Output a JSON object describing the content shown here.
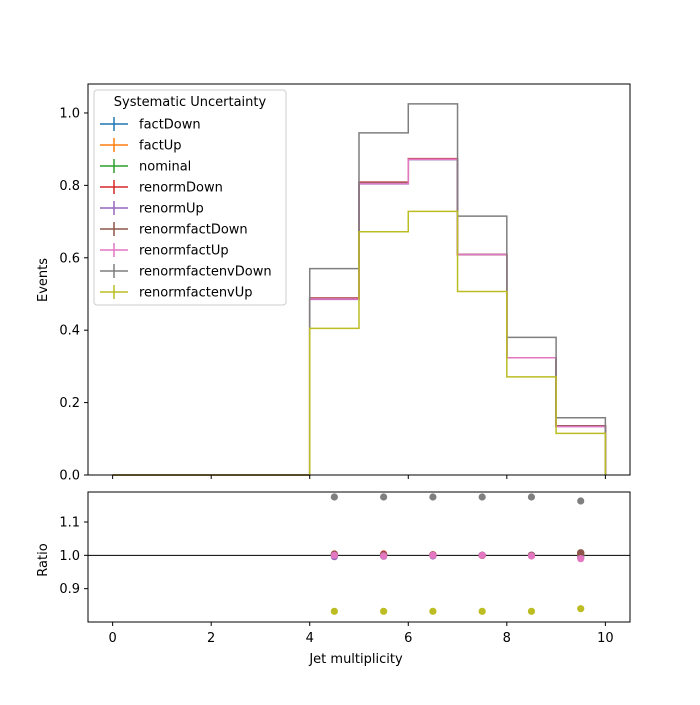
{
  "chart_data": [
    {
      "type": "step",
      "ylabel": "Events",
      "xlim": [
        -0.5,
        10.5
      ],
      "ylim": [
        0,
        1.08
      ],
      "yticks": [
        "0.0",
        "0.2",
        "0.4",
        "0.6",
        "0.8",
        "1.0"
      ],
      "bin_edges": [
        0,
        1,
        2,
        3,
        4,
        5,
        6,
        7,
        8,
        9,
        10
      ],
      "legend": {
        "title": "Systematic Uncertainty",
        "placement": "upper-left"
      },
      "series": [
        {
          "name": "factDown",
          "color": "#1f77b4",
          "values": [
            0,
            0,
            0,
            0,
            0.487,
            0.806,
            0.872,
            0.609,
            0.324,
            0.135
          ]
        },
        {
          "name": "factUp",
          "color": "#ff7f0e",
          "values": [
            0,
            0,
            0,
            0,
            0.487,
            0.806,
            0.872,
            0.609,
            0.324,
            0.135
          ]
        },
        {
          "name": "nominal",
          "color": "#2ca02c",
          "values": [
            0,
            0,
            0,
            0,
            0.487,
            0.806,
            0.872,
            0.609,
            0.324,
            0.135
          ]
        },
        {
          "name": "renormDown",
          "color": "#d62728",
          "values": [
            0,
            0,
            0,
            0,
            0.489,
            0.809,
            0.874,
            0.609,
            0.324,
            0.136
          ]
        },
        {
          "name": "renormUp",
          "color": "#9467bd",
          "values": [
            0,
            0,
            0,
            0,
            0.485,
            0.804,
            0.871,
            0.609,
            0.324,
            0.134
          ]
        },
        {
          "name": "renormfactDown",
          "color": "#8c564b",
          "values": [
            0,
            0,
            0,
            0,
            0.488,
            0.808,
            0.873,
            0.609,
            0.324,
            0.136
          ]
        },
        {
          "name": "renormfactUp",
          "color": "#e377c2",
          "values": [
            0,
            0,
            0,
            0,
            0.486,
            0.805,
            0.872,
            0.609,
            0.324,
            0.134
          ]
        },
        {
          "name": "renormfactenvDown",
          "color": "#7f7f7f",
          "values": [
            0,
            0,
            0,
            0,
            0.57,
            0.945,
            1.025,
            0.715,
            0.38,
            0.158
          ]
        },
        {
          "name": "renormfactenvUp",
          "color": "#bcbd22",
          "values": [
            0,
            0,
            0,
            0,
            0.405,
            0.672,
            0.728,
            0.507,
            0.271,
            0.115
          ]
        }
      ]
    },
    {
      "type": "scatter",
      "xlabel": "Jet multiplicity",
      "ylabel": "Ratio",
      "xlim": [
        -0.5,
        10.5
      ],
      "ylim": [
        0.8,
        1.19
      ],
      "xticks": [
        "0",
        "2",
        "4",
        "6",
        "8",
        "10"
      ],
      "yticks": [
        "0.9",
        "1.0",
        "1.1"
      ],
      "reference_line": 1.0,
      "x": [
        4.5,
        5.5,
        6.5,
        7.5,
        8.5,
        9.5
      ],
      "series": [
        {
          "name": "factDown",
          "color": "#1f77b4",
          "values": [
            1.0,
            1.0,
            1.0,
            1.0,
            1.0,
            1.0
          ]
        },
        {
          "name": "factUp",
          "color": "#ff7f0e",
          "values": [
            1.0,
            1.0,
            1.0,
            1.0,
            1.0,
            1.0
          ]
        },
        {
          "name": "nominal",
          "color": "#2ca02c",
          "values": [
            1.0,
            1.0,
            1.0,
            1.0,
            1.0,
            1.0
          ]
        },
        {
          "name": "renormDown",
          "color": "#d62728",
          "values": [
            1.004,
            1.004,
            1.002,
            1.0,
            1.0,
            1.006
          ]
        },
        {
          "name": "renormUp",
          "color": "#9467bd",
          "values": [
            0.996,
            0.997,
            0.998,
            1.0,
            1.0,
            0.994
          ]
        },
        {
          "name": "renormfactDown",
          "color": "#8c564b",
          "values": [
            1.003,
            1.002,
            1.001,
            1.0,
            1.0,
            1.008
          ]
        },
        {
          "name": "renormfactUp",
          "color": "#e377c2",
          "values": [
            1.0,
            0.998,
            1.0,
            1.0,
            0.998,
            0.99
          ]
        },
        {
          "name": "renormfactenvDown",
          "color": "#7f7f7f",
          "values": [
            1.175,
            1.175,
            1.175,
            1.175,
            1.175,
            1.163
          ]
        },
        {
          "name": "renormfactenvUp",
          "color": "#bcbd22",
          "values": [
            0.832,
            0.832,
            0.832,
            0.832,
            0.832,
            0.84
          ]
        }
      ]
    }
  ]
}
